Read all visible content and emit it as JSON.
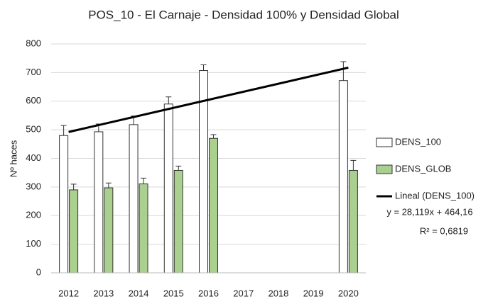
{
  "chart_data": {
    "type": "bar",
    "title": "POS_10 - El Carnaje - Densidad 100% y Densidad Global",
    "y_label": "Nº haces",
    "categories": [
      "2012",
      "2013",
      "2014",
      "2015",
      "2016",
      "2017",
      "2018",
      "2019",
      "2020"
    ],
    "series": [
      {
        "name": "DENS_100",
        "color": "#ffffff",
        "values": [
          480,
          493,
          518,
          590,
          707,
          null,
          null,
          null,
          672
        ],
        "errors": [
          35,
          27,
          30,
          25,
          20,
          null,
          null,
          null,
          66
        ]
      },
      {
        "name": "DENS_GLOB",
        "color": "#a9d08e",
        "values": [
          290,
          297,
          311,
          358,
          470,
          null,
          null,
          null,
          358
        ],
        "errors": [
          20,
          17,
          20,
          15,
          13,
          null,
          null,
          null,
          35
        ]
      }
    ],
    "trendline": {
      "name": "Lineal (DENS_100)",
      "color": "#000000",
      "values": [
        492.279,
        717.231
      ],
      "equation": "y = 28,119x + 464,16",
      "r2": "R² = 0,6819"
    },
    "ylim": [
      0,
      800
    ],
    "yticks": [
      0,
      100,
      200,
      300,
      400,
      500,
      600,
      700,
      800
    ],
    "grid": true
  }
}
